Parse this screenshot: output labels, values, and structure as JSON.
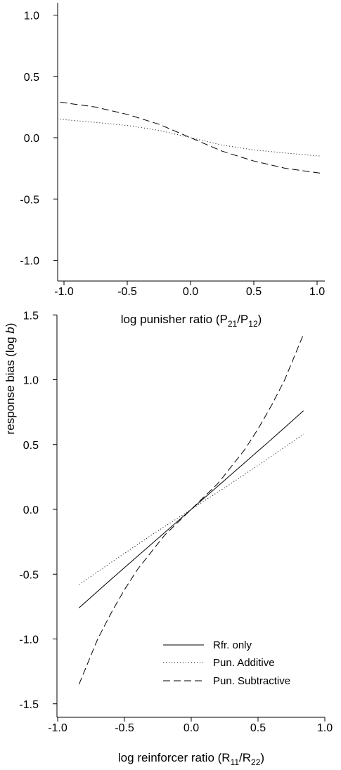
{
  "figure": {
    "shared_ylabel": "response bias (log b)",
    "ylabel_prefix": "response bias (log ",
    "ylabel_italic": "b",
    "ylabel_suffix": ")"
  },
  "chart_data": [
    {
      "type": "line",
      "title": "",
      "xlabel": "log punisher ratio (P21/P12)",
      "xlabel_parts": {
        "main": "log punisher ratio (P",
        "sub1": "21",
        "mid": "/P",
        "sub2": "12",
        "end": ")"
      },
      "ylabel": "response bias (log b)",
      "xlim": [
        -1.1,
        1.1
      ],
      "ylim": [
        -1.1,
        1.1
      ],
      "xticks": [
        -1.0,
        -0.5,
        0.0,
        0.5,
        1.0
      ],
      "xtick_labels": [
        "-1.0",
        "-0.5",
        "0.0",
        "0.5",
        "1.0"
      ],
      "yticks": [
        -1.0,
        -0.5,
        0.0,
        0.5,
        1.0
      ],
      "ytick_labels": [
        "-1.0",
        "-0.5",
        "0.0",
        "0.5",
        "1.0"
      ],
      "grid": false,
      "series": [
        {
          "name": "Pun. Additive",
          "style": "dotted",
          "x": [
            -1.03,
            -0.75,
            -0.5,
            -0.25,
            0.0,
            0.25,
            0.5,
            0.75,
            1.03
          ],
          "y": [
            0.15,
            0.125,
            0.1,
            0.06,
            0.0,
            -0.06,
            -0.1,
            -0.125,
            -0.15
          ]
        },
        {
          "name": "Pun. Subtractive",
          "style": "dashed",
          "x": [
            -1.03,
            -0.75,
            -0.5,
            -0.25,
            0.0,
            0.25,
            0.5,
            0.75,
            1.03
          ],
          "y": [
            0.29,
            0.25,
            0.19,
            0.11,
            0.0,
            -0.11,
            -0.19,
            -0.25,
            -0.29
          ]
        }
      ]
    },
    {
      "type": "line",
      "title": "",
      "xlabel": "log reinforcer ratio (R11/R22)",
      "xlabel_parts": {
        "main": "log reinforcer ratio (R",
        "sub1": "11",
        "mid": "/R",
        "sub2": "22",
        "end": ")"
      },
      "ylabel": "response bias (log b)",
      "xlim": [
        -1.0,
        1.0
      ],
      "ylim": [
        -1.5,
        1.5
      ],
      "xticks": [
        -1.0,
        -0.5,
        0.0,
        0.5,
        1.0
      ],
      "xtick_labels": [
        "-1.0",
        "-0.5",
        "0.0",
        "0.5",
        "1.0"
      ],
      "yticks": [
        -1.5,
        -1.0,
        -0.5,
        0.0,
        0.5,
        1.0,
        1.5
      ],
      "ytick_labels": [
        "-1.5",
        "-1.0",
        "-0.5",
        "0.0",
        "0.5",
        "1.0",
        "1.5"
      ],
      "grid": false,
      "legend_position": "bottom-right",
      "series": [
        {
          "name": "Rfr. only",
          "style": "solid",
          "x": [
            -0.84,
            -0.6,
            -0.3,
            0.0,
            0.3,
            0.6,
            0.84
          ],
          "y": [
            -0.76,
            -0.54,
            -0.27,
            0.0,
            0.27,
            0.54,
            0.76
          ]
        },
        {
          "name": "Pun. Additive",
          "style": "dotted",
          "x": [
            -0.84,
            -0.6,
            -0.3,
            0.0,
            0.3,
            0.6,
            0.84
          ],
          "y": [
            -0.58,
            -0.41,
            -0.2,
            0.0,
            0.2,
            0.41,
            0.58
          ]
        },
        {
          "name": "Pun. Subtractive",
          "style": "dashed",
          "x": [
            -0.84,
            -0.7,
            -0.6,
            -0.5,
            -0.4,
            -0.3,
            -0.2,
            -0.1,
            0.0,
            0.1,
            0.2,
            0.3,
            0.4,
            0.5,
            0.6,
            0.7,
            0.84
          ],
          "y": [
            -1.35,
            -1.0,
            -0.8,
            -0.62,
            -0.46,
            -0.33,
            -0.2,
            -0.1,
            0.0,
            0.1,
            0.2,
            0.33,
            0.46,
            0.62,
            0.8,
            1.0,
            1.35
          ]
        }
      ]
    }
  ]
}
